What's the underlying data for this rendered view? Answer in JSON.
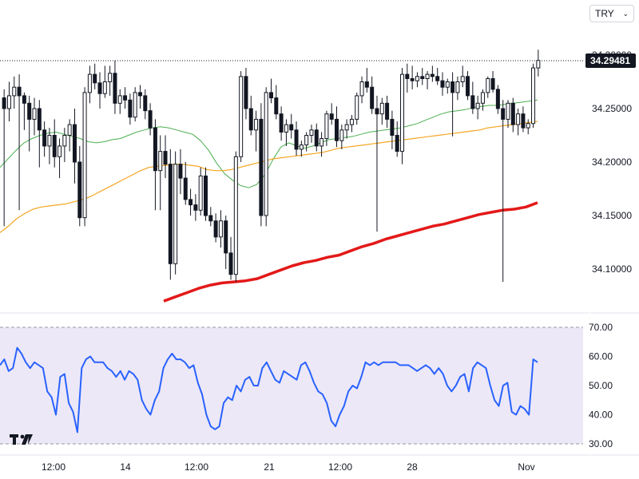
{
  "currency_selector": {
    "value": "TRY",
    "chevron_icon": "chevron-down-icon"
  },
  "last_price_label": "34.29481",
  "logo_icon": "tradingview-logo-icon",
  "colors": {
    "ma_fast": "#4caf50",
    "ma_mid": "#f5a623",
    "ma_slow": "#e31919",
    "rsi": "#2962ff",
    "rsi_band": "#ece8f7",
    "candle": "#131722",
    "badge": "#131722"
  },
  "chart_data": [
    {
      "type": "candlestick",
      "title": "",
      "ylim": [
        34.05,
        34.31
      ],
      "y_ticks": [
        "34.30000",
        "34.25000",
        "34.20000",
        "34.15000",
        "34.10000"
      ],
      "y_tick_values": [
        34.3,
        34.25,
        34.2,
        34.15,
        34.1
      ],
      "x_ticks": [
        "12:00",
        "14",
        "12:00",
        "21",
        "12:00",
        "28",
        "Nov"
      ],
      "last_price": 34.29481,
      "candles": [
        [
          34.26,
          34.268,
          34.14,
          34.25
        ],
        [
          34.25,
          34.275,
          34.238,
          34.262
        ],
        [
          34.262,
          34.28,
          34.25,
          34.27
        ],
        [
          34.27,
          34.282,
          34.155,
          34.262
        ],
        [
          34.262,
          34.265,
          34.23,
          34.255
        ],
        [
          34.255,
          34.262,
          34.21,
          34.24
        ],
        [
          34.24,
          34.26,
          34.225,
          34.25
        ],
        [
          34.25,
          34.258,
          34.195,
          34.23
        ],
        [
          34.23,
          34.238,
          34.205,
          34.215
        ],
        [
          34.215,
          34.232,
          34.198,
          34.225
        ],
        [
          34.225,
          34.24,
          34.195,
          34.205
        ],
        [
          34.205,
          34.222,
          34.185,
          34.215
        ],
        [
          34.215,
          34.232,
          34.2,
          34.225
        ],
        [
          34.225,
          34.24,
          34.21,
          34.235
        ],
        [
          34.235,
          34.25,
          34.18,
          34.2
        ],
        [
          34.2,
          34.215,
          34.14,
          34.148
        ],
        [
          34.148,
          34.27,
          34.14,
          34.265
        ],
        [
          34.265,
          34.29,
          34.255,
          34.282
        ],
        [
          34.282,
          34.292,
          34.268,
          34.274
        ],
        [
          34.274,
          34.284,
          34.25,
          34.264
        ],
        [
          34.264,
          34.29,
          34.26,
          34.275
        ],
        [
          34.275,
          34.29,
          34.262,
          34.283
        ],
        [
          34.283,
          34.295,
          34.245,
          34.255
        ],
        [
          34.255,
          34.268,
          34.245,
          34.262
        ],
        [
          34.262,
          34.27,
          34.25,
          34.258
        ],
        [
          34.258,
          34.264,
          34.235,
          34.242
        ],
        [
          34.242,
          34.27,
          34.238,
          34.265
        ],
        [
          34.265,
          34.272,
          34.25,
          34.262
        ],
        [
          34.262,
          34.268,
          34.24,
          34.248
        ],
        [
          34.248,
          34.255,
          34.225,
          34.232
        ],
        [
          34.232,
          34.24,
          34.155,
          34.192
        ],
        [
          34.192,
          34.225,
          34.155,
          34.21
        ],
        [
          34.21,
          34.225,
          34.185,
          34.198
        ],
        [
          34.198,
          34.212,
          34.09,
          34.105
        ],
        [
          34.105,
          34.21,
          34.095,
          34.198
        ],
        [
          34.198,
          34.212,
          34.17,
          34.185
        ],
        [
          34.185,
          34.2,
          34.16,
          34.165
        ],
        [
          34.165,
          34.175,
          34.15,
          34.16
        ],
        [
          34.16,
          34.17,
          34.145,
          34.155
        ],
        [
          34.155,
          34.195,
          34.15,
          34.187
        ],
        [
          34.187,
          34.195,
          34.145,
          34.15
        ],
        [
          34.15,
          34.158,
          34.14,
          34.145
        ],
        [
          34.145,
          34.152,
          34.125,
          34.13
        ],
        [
          34.13,
          34.155,
          34.12,
          34.145
        ],
        [
          34.145,
          34.15,
          34.1,
          34.115
        ],
        [
          34.115,
          34.13,
          34.09,
          34.095
        ],
        [
          34.095,
          34.21,
          34.088,
          34.205
        ],
        [
          34.205,
          34.285,
          34.2,
          34.28
        ],
        [
          34.28,
          34.288,
          34.24,
          34.25
        ],
        [
          34.25,
          34.262,
          34.225,
          34.23
        ],
        [
          34.23,
          34.248,
          34.21,
          34.24
        ],
        [
          34.24,
          34.255,
          34.14,
          34.15
        ],
        [
          34.15,
          34.27,
          34.14,
          34.265
        ],
        [
          34.265,
          34.278,
          34.255,
          34.26
        ],
        [
          34.26,
          34.272,
          34.24,
          34.245
        ],
        [
          34.245,
          34.252,
          34.22,
          34.228
        ],
        [
          34.228,
          34.24,
          34.215,
          34.235
        ],
        [
          34.235,
          34.245,
          34.222,
          34.23
        ],
        [
          34.23,
          34.238,
          34.206,
          34.212
        ],
        [
          34.212,
          34.22,
          34.205,
          34.216
        ],
        [
          34.216,
          34.228,
          34.21,
          34.225
        ],
        [
          34.225,
          34.235,
          34.218,
          34.23
        ],
        [
          34.23,
          34.236,
          34.21,
          34.215
        ],
        [
          34.215,
          34.228,
          34.205,
          34.222
        ],
        [
          34.222,
          34.248,
          34.215,
          34.245
        ],
        [
          34.245,
          34.255,
          34.235,
          34.24
        ],
        [
          34.24,
          34.252,
          34.214,
          34.22
        ],
        [
          34.22,
          34.235,
          34.212,
          34.23
        ],
        [
          34.23,
          34.24,
          34.222,
          34.235
        ],
        [
          34.235,
          34.244,
          34.228,
          34.24
        ],
        [
          34.24,
          34.265,
          34.235,
          34.262
        ],
        [
          34.262,
          34.28,
          34.255,
          34.275
        ],
        [
          34.275,
          34.288,
          34.265,
          34.27
        ],
        [
          34.27,
          34.28,
          34.245,
          34.25
        ],
        [
          34.25,
          34.262,
          34.135,
          34.245
        ],
        [
          34.245,
          34.26,
          34.235,
          34.255
        ],
        [
          34.255,
          34.262,
          34.232,
          34.24
        ],
        [
          34.24,
          34.248,
          34.212,
          34.225
        ],
        [
          34.225,
          34.238,
          34.205,
          34.21
        ],
        [
          34.21,
          34.288,
          34.198,
          34.282
        ],
        [
          34.282,
          34.292,
          34.265,
          34.278
        ],
        [
          34.278,
          34.29,
          34.268,
          34.276
        ],
        [
          34.276,
          34.284,
          34.27,
          34.28
        ],
        [
          34.28,
          34.288,
          34.272,
          34.278
        ],
        [
          34.278,
          34.285,
          34.268,
          34.282
        ],
        [
          34.282,
          34.29,
          34.275,
          34.28
        ],
        [
          34.28,
          34.288,
          34.272,
          34.276
        ],
        [
          34.276,
          34.284,
          34.262,
          34.27
        ],
        [
          34.27,
          34.278,
          34.264,
          34.275
        ],
        [
          34.275,
          34.284,
          34.224,
          34.265
        ],
        [
          34.265,
          34.28,
          34.258,
          34.275
        ],
        [
          34.275,
          34.29,
          34.27,
          34.28
        ],
        [
          34.28,
          34.285,
          34.258,
          34.262
        ],
        [
          34.262,
          34.275,
          34.245,
          34.25
        ],
        [
          34.25,
          34.262,
          34.24,
          34.255
        ],
        [
          34.255,
          34.268,
          34.248,
          34.265
        ],
        [
          34.265,
          34.28,
          34.26,
          34.278
        ],
        [
          34.278,
          34.285,
          34.265,
          34.268
        ],
        [
          34.268,
          34.272,
          34.245,
          34.25
        ],
        [
          34.25,
          34.258,
          34.088,
          34.24
        ],
        [
          34.24,
          34.258,
          34.232,
          34.255
        ],
        [
          34.255,
          34.26,
          34.228,
          34.235
        ],
        [
          34.235,
          34.25,
          34.225,
          34.245
        ],
        [
          34.245,
          34.252,
          34.228,
          34.232
        ],
        [
          34.232,
          34.24,
          34.226,
          34.236
        ],
        [
          34.236,
          34.292,
          34.232,
          34.288
        ],
        [
          34.288,
          34.305,
          34.28,
          34.295
        ]
      ],
      "moving_averages": [
        {
          "name": "MA fast",
          "values": [
            34.195,
            34.203,
            34.211,
            34.218,
            34.222,
            34.225,
            34.227,
            34.228,
            34.226,
            34.224,
            34.222,
            34.219,
            34.218,
            34.219,
            34.221,
            34.222,
            34.225,
            34.228,
            34.23,
            34.232,
            34.233,
            34.232,
            34.23,
            34.228,
            34.226,
            34.22,
            34.211,
            34.199,
            34.189,
            34.183,
            34.178,
            34.176,
            34.179,
            34.188,
            34.202,
            34.214,
            34.218,
            34.215,
            34.213,
            34.215,
            34.218,
            34.221,
            34.222,
            34.223,
            34.224,
            34.226,
            34.228,
            34.229,
            34.23,
            34.231,
            34.232,
            34.234,
            34.236,
            34.239,
            34.242,
            34.245,
            34.247,
            34.248,
            34.249,
            34.251,
            34.252,
            34.253,
            34.253,
            34.254,
            34.255,
            34.256,
            34.257,
            34.258
          ]
        },
        {
          "name": "MA mid",
          "values": [
            34.134,
            34.14,
            34.147,
            34.152,
            34.156,
            34.158,
            34.159,
            34.16,
            34.161,
            34.163,
            34.165,
            34.168,
            34.172,
            34.176,
            34.18,
            34.184,
            34.188,
            34.192,
            34.195,
            34.196,
            34.197,
            34.198,
            34.198,
            34.197,
            34.196,
            34.193,
            34.192,
            34.192,
            34.193,
            34.195,
            34.197,
            34.199,
            34.201,
            34.203,
            34.204,
            34.205,
            34.206,
            34.207,
            34.208,
            34.209,
            34.211,
            34.213,
            34.214,
            34.215,
            34.216,
            34.217,
            34.218,
            34.219,
            34.22,
            34.221,
            34.222,
            34.223,
            34.224,
            34.225,
            34.226,
            34.227,
            34.228,
            34.229,
            34.23,
            34.232,
            34.233,
            34.234,
            34.235,
            34.236,
            34.237,
            34.238
          ]
        },
        {
          "name": "MA slow",
          "values": [
            34.07,
            34.074,
            34.078,
            34.082,
            34.085,
            34.087,
            34.088,
            34.089,
            34.091,
            34.095,
            34.099,
            34.103,
            34.106,
            34.108,
            34.111,
            34.113,
            34.117,
            34.121,
            34.124,
            34.128,
            34.131,
            34.134,
            34.137,
            34.14,
            34.142,
            34.145,
            34.148,
            34.151,
            34.153,
            34.155,
            34.156,
            34.158,
            34.162
          ]
        }
      ]
    },
    {
      "type": "line",
      "title": "",
      "ylim": [
        30,
        70
      ],
      "y_ticks": [
        "70.00",
        "60.00",
        "50.00",
        "40.00",
        "30.00"
      ],
      "y_tick_values": [
        70,
        60,
        50,
        40,
        30
      ],
      "band": [
        30,
        70
      ],
      "values": [
        57,
        59,
        55,
        56,
        63,
        61,
        58,
        56,
        58,
        57,
        56,
        48,
        46,
        40,
        53,
        54,
        44,
        41,
        34,
        56,
        59,
        60,
        58,
        58,
        58,
        56,
        55,
        53,
        55,
        52,
        55,
        54,
        52,
        45,
        42,
        40,
        45,
        48,
        56,
        59,
        61,
        59,
        59,
        58,
        56,
        57,
        51,
        47,
        40,
        36,
        35,
        36,
        44,
        46,
        45,
        50,
        48,
        52,
        53,
        50,
        50,
        56,
        58,
        55,
        52,
        51,
        55,
        54,
        53,
        52,
        57,
        58,
        55,
        51,
        48,
        47,
        44,
        38,
        36,
        40,
        43,
        48,
        50,
        49,
        53,
        58,
        57,
        58,
        57,
        58,
        58,
        58,
        58,
        57,
        57,
        57,
        56,
        55,
        56,
        57,
        56,
        54,
        56,
        54,
        50,
        48,
        50,
        53,
        54,
        48,
        56,
        58,
        57,
        56,
        50,
        45,
        43,
        50,
        51,
        41,
        40,
        43,
        42,
        40,
        59,
        58
      ],
      "x_ticks": [
        "12:00",
        "14",
        "12:00",
        "21",
        "12:00",
        "28",
        "Nov"
      ]
    }
  ]
}
